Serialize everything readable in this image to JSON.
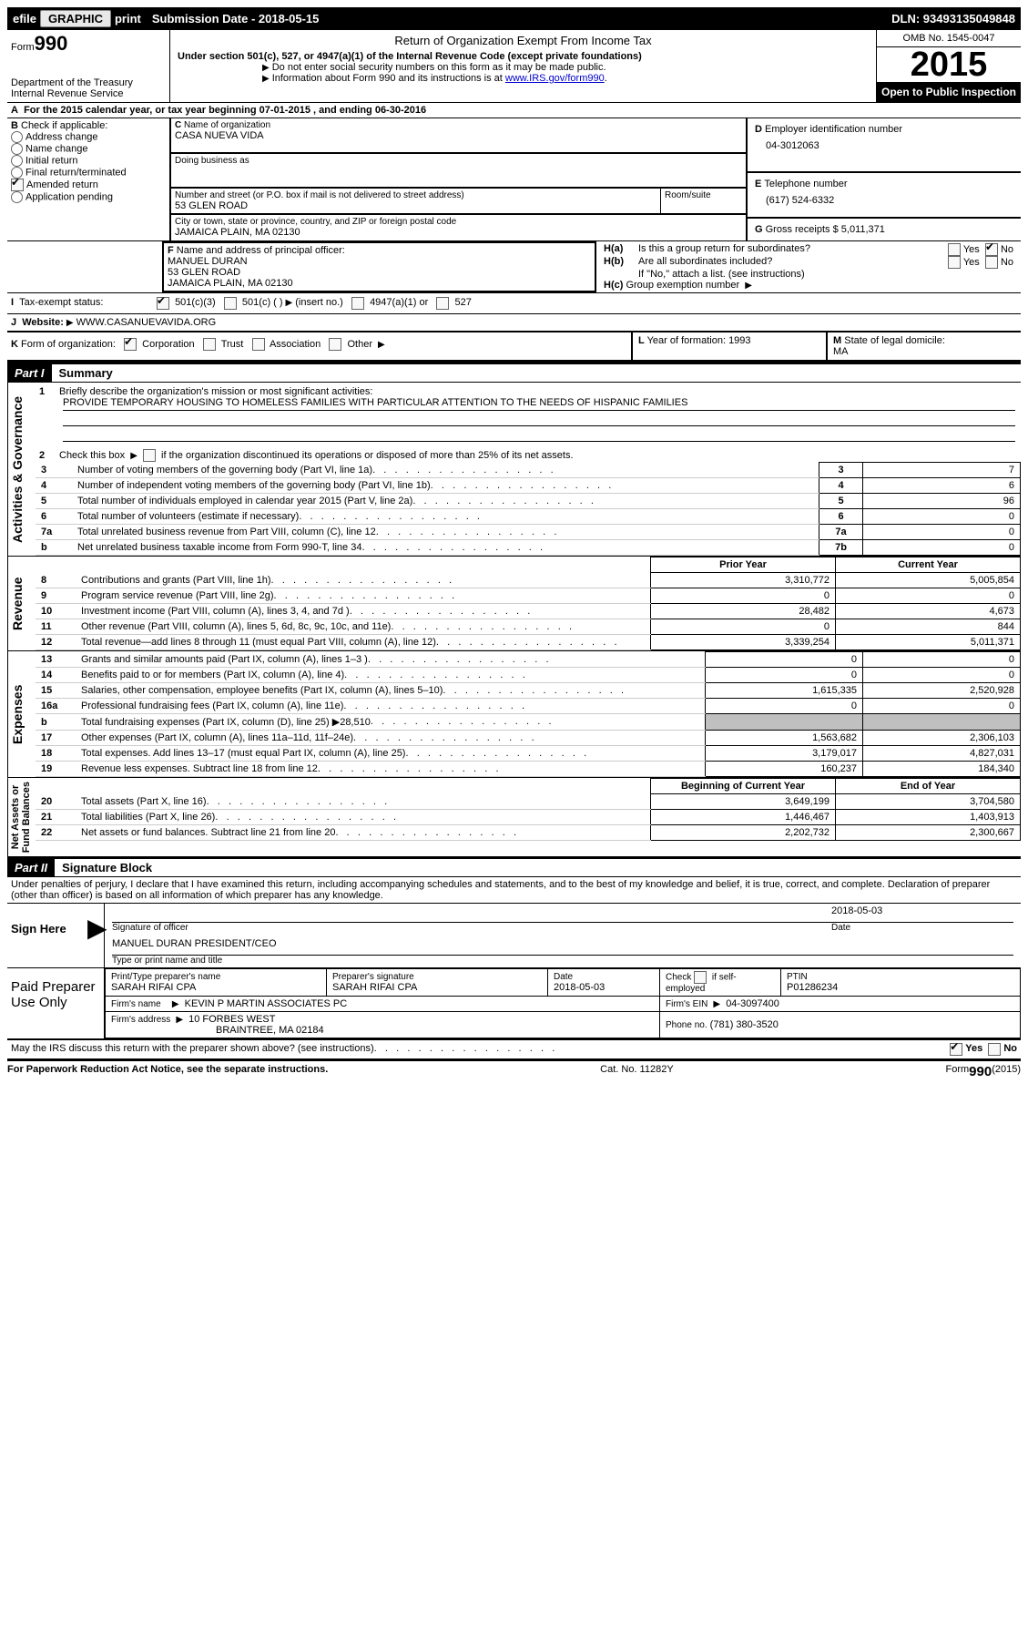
{
  "header_bar": {
    "efile": "efile",
    "graphic_btn": "GRAPHIC",
    "print_btn": "print",
    "submission_label": "Submission Date - 2018-05-15",
    "dln_label": "DLN: 93493135049848"
  },
  "top": {
    "form_label": "Form",
    "form_number": "990",
    "dept": "Department of the Treasury\nInternal Revenue Service",
    "title": "Return of Organization Exempt From Income Tax",
    "subtitle": "Under section 501(c), 527, or 4947(a)(1) of the Internal Revenue Code (except private foundations)",
    "note1": "Do not enter social security numbers on this form as it may be made public.",
    "note2_pre": "Information about Form 990 and its instructions is at ",
    "note2_link": "www.IRS.gov/form990",
    "omb": "OMB No. 1545-0047",
    "year": "2015",
    "open_inspection": "Open to Public Inspection"
  },
  "line_a": "For the 2015 calendar year, or tax year beginning 07-01-2015   , and ending 06-30-2016",
  "box_b": {
    "title": "Check if applicable:",
    "opts": [
      "Address change",
      "Name change",
      "Initial return",
      "Final return/terminated",
      "Amended return",
      "Application pending"
    ]
  },
  "box_c": {
    "label_name": "Name of organization",
    "org_name": "CASA NUEVA VIDA",
    "dba_label": "Doing business as",
    "addr_label": "Number and street (or P.O. box if mail is not delivered to street address)",
    "room_label": "Room/suite",
    "street": "53 GLEN ROAD",
    "city_label": "City or town, state or province, country, and ZIP or foreign postal code",
    "city": "JAMAICA PLAIN, MA  02130"
  },
  "box_d": {
    "label": "Employer identification number",
    "value": "04-3012063"
  },
  "box_e": {
    "label": "Telephone number",
    "value": "(617) 524-6332"
  },
  "box_g": {
    "label": "Gross receipts $",
    "value": "5,011,371"
  },
  "box_f": {
    "label": "Name and address of principal officer:",
    "name": "MANUEL DURAN",
    "addr1": "53 GLEN ROAD",
    "addr2": "JAMAICA PLAIN, MA  02130"
  },
  "box_h": {
    "a_label": "Is this a group return for subordinates?",
    "b_label": "Are all subordinates included?",
    "yes": "Yes",
    "no": "No",
    "ifno": "If \"No,\" attach a list. (see instructions)",
    "c_label": "Group exemption number"
  },
  "box_i": {
    "label": "Tax-exempt status:",
    "o1": "501(c)(3)",
    "o2": "501(c) (   )",
    "o2_hint": "(insert no.)",
    "o3": "4947(a)(1) or",
    "o4": "527"
  },
  "box_j": {
    "label": "Website:",
    "value": "WWW.CASANUEVAVIDA.ORG"
  },
  "box_k": {
    "label": "Form of organization:",
    "opts": [
      "Corporation",
      "Trust",
      "Association",
      "Other"
    ]
  },
  "box_l": {
    "label": "Year of formation:",
    "value": "1993"
  },
  "box_m": {
    "label": "State of legal domicile:",
    "value": "MA"
  },
  "part1": {
    "header": "Part I",
    "title": "Summary",
    "q1": "Briefly describe the organization's mission or most significant activities:",
    "mission": "PROVIDE TEMPORARY HOUSING TO HOMELESS FAMILIES WITH PARTICULAR ATTENTION TO THE NEEDS OF HISPANIC FAMILIES",
    "q2": "Check this box",
    "q2_tail": "if the organization discontinued its operations or disposed of more than 25% of its net assets.",
    "rows_single": [
      {
        "n": "3",
        "text": "Number of voting members of the governing body (Part VI, line 1a)",
        "box": "3",
        "val": "7"
      },
      {
        "n": "4",
        "text": "Number of independent voting members of the governing body (Part VI, line 1b)",
        "box": "4",
        "val": "6"
      },
      {
        "n": "5",
        "text": "Total number of individuals employed in calendar year 2015 (Part V, line 2a)",
        "box": "5",
        "val": "96"
      },
      {
        "n": "6",
        "text": "Total number of volunteers (estimate if necessary)",
        "box": "6",
        "val": "0"
      },
      {
        "n": "7a",
        "text": "Total unrelated business revenue from Part VIII, column (C), line 12",
        "box": "7a",
        "val": "0"
      },
      {
        "n": "b",
        "text": "Net unrelated business taxable income from Form 990-T, line 34",
        "box": "7b",
        "val": "0"
      }
    ],
    "col_headers": {
      "prior": "Prior Year",
      "current": "Current Year"
    },
    "revenue": [
      {
        "n": "8",
        "text": "Contributions and grants (Part VIII, line 1h)",
        "prior": "3,310,772",
        "cur": "5,005,854"
      },
      {
        "n": "9",
        "text": "Program service revenue (Part VIII, line 2g)",
        "prior": "0",
        "cur": "0"
      },
      {
        "n": "10",
        "text": "Investment income (Part VIII, column (A), lines 3, 4, and 7d )",
        "prior": "28,482",
        "cur": "4,673"
      },
      {
        "n": "11",
        "text": "Other revenue (Part VIII, column (A), lines 5, 6d, 8c, 9c, 10c, and 11e)",
        "prior": "0",
        "cur": "844"
      },
      {
        "n": "12",
        "text": "Total revenue—add lines 8 through 11 (must equal Part VIII, column (A), line 12)",
        "prior": "3,339,254",
        "cur": "5,011,371"
      }
    ],
    "expenses": [
      {
        "n": "13",
        "text": "Grants and similar amounts paid (Part IX, column (A), lines 1–3 )",
        "prior": "0",
        "cur": "0"
      },
      {
        "n": "14",
        "text": "Benefits paid to or for members (Part IX, column (A), line 4)",
        "prior": "0",
        "cur": "0"
      },
      {
        "n": "15",
        "text": "Salaries, other compensation, employee benefits (Part IX, column (A), lines 5–10)",
        "prior": "1,615,335",
        "cur": "2,520,928"
      },
      {
        "n": "16a",
        "text": "Professional fundraising fees (Part IX, column (A), line 11e)",
        "prior": "0",
        "cur": "0"
      },
      {
        "n": "b",
        "text": "Total fundraising expenses (Part IX, column (D), line 25) ▶28,510",
        "prior": "",
        "cur": "",
        "shaded": true
      },
      {
        "n": "17",
        "text": "Other expenses (Part IX, column (A), lines 11a–11d, 11f–24e)",
        "prior": "1,563,682",
        "cur": "2,306,103"
      },
      {
        "n": "18",
        "text": "Total expenses. Add lines 13–17 (must equal Part IX, column (A), line 25)",
        "prior": "3,179,017",
        "cur": "4,827,031"
      },
      {
        "n": "19",
        "text": "Revenue less expenses. Subtract line 18 from line 12",
        "prior": "160,237",
        "cur": "184,340"
      }
    ],
    "net_headers": {
      "begin": "Beginning of Current Year",
      "end": "End of Year"
    },
    "net": [
      {
        "n": "20",
        "text": "Total assets (Part X, line 16)",
        "prior": "3,649,199",
        "cur": "3,704,580"
      },
      {
        "n": "21",
        "text": "Total liabilities (Part X, line 26)",
        "prior": "1,446,467",
        "cur": "1,403,913"
      },
      {
        "n": "22",
        "text": "Net assets or fund balances. Subtract line 21 from line 20",
        "prior": "2,202,732",
        "cur": "2,300,667"
      }
    ],
    "vlabels": {
      "gov": "Activities & Governance",
      "rev": "Revenue",
      "exp": "Expenses",
      "net": "Net Assets or\nFund Balances"
    }
  },
  "part2": {
    "header": "Part II",
    "title": "Signature Block",
    "perjury": "Under penalties of perjury, I declare that I have examined this return, including accompanying schedules and statements, and to the best of my knowledge and belief, it is true, correct, and complete. Declaration of preparer (other than officer) is based on all information of which preparer has any knowledge.",
    "sign_here": "Sign Here",
    "sig_officer": "Signature of officer",
    "sig_date": "2018-05-03",
    "date_label": "Date",
    "officer_name": "MANUEL DURAN PRESIDENT/CEO",
    "type_name": "Type or print name and title"
  },
  "preparer": {
    "label": "Paid Preparer Use Only",
    "print_name_label": "Print/Type preparer's name",
    "print_name": "SARAH RIFAI CPA",
    "sig_label": "Preparer's signature",
    "sig": "SARAH RIFAI CPA",
    "date_label": "Date",
    "date": "2018-05-03",
    "check_label": "Check",
    "self_emp": "if self-employed",
    "ptin_label": "PTIN",
    "ptin": "P01286234",
    "firm_name_label": "Firm's name",
    "firm_name": "KEVIN P MARTIN ASSOCIATES PC",
    "firm_ein_label": "Firm's EIN",
    "firm_ein": "04-3097400",
    "firm_addr_label": "Firm's address",
    "firm_addr1": "10 FORBES WEST",
    "firm_addr2": "BRAINTREE, MA  02184",
    "phone_label": "Phone no.",
    "phone": "(781) 380-3520"
  },
  "footer": {
    "discuss": "May the IRS discuss this return with the preparer shown above? (see instructions)",
    "yes": "Yes",
    "no": "No",
    "paperwork": "For Paperwork Reduction Act Notice, see the separate instructions.",
    "catno": "Cat. No. 11282Y",
    "formtag": "Form",
    "form": "990",
    "formyear": "(2015)"
  }
}
